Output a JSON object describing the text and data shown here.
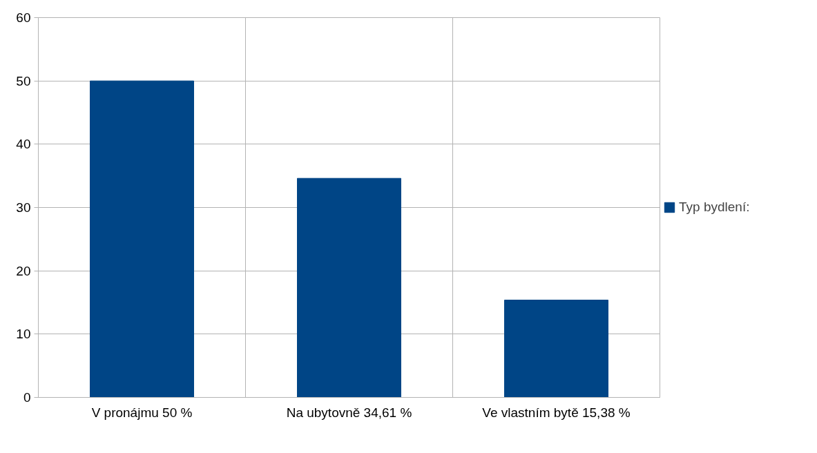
{
  "chart_data": {
    "type": "bar",
    "categories": [
      "V pronájmu 50 %",
      "Na ubytovně 34,61 %",
      "Ve vlastním bytě 15,38 %"
    ],
    "series": [
      {
        "name": "Typ bydlení:",
        "color": "#004586",
        "values": [
          50,
          34.61,
          15.38
        ]
      }
    ],
    "ylim": [
      0,
      60
    ],
    "yticks": [
      0,
      10,
      20,
      30,
      40,
      50,
      60
    ],
    "grid": true,
    "legend": "right"
  }
}
